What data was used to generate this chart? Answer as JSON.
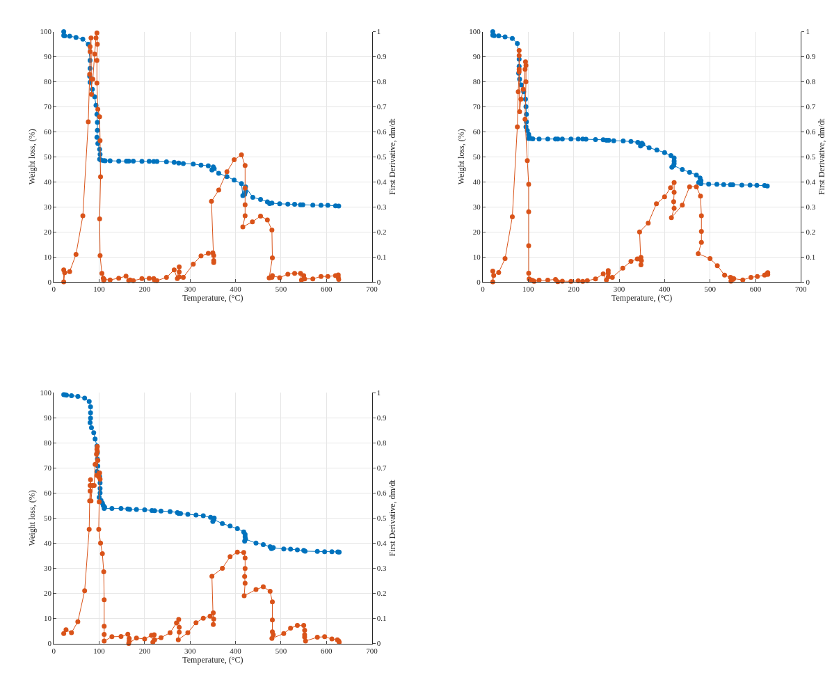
{
  "chart_data": [
    {
      "type": "line",
      "xlabel": "Temperature, (°C)",
      "ylabel": "Weight loss, (%)",
      "y2label": "First Derivative, dm/dt",
      "xlim": [
        0,
        700
      ],
      "xticks": [
        0,
        100,
        200,
        300,
        400,
        500,
        600,
        700
      ],
      "ylim": [
        0,
        100
      ],
      "yticks": [
        0,
        10,
        20,
        30,
        40,
        50,
        60,
        70,
        80,
        90,
        100
      ],
      "y2lim": [
        0,
        1
      ],
      "y2ticks": [
        0,
        0.1,
        0.2,
        0.3,
        0.4,
        0.5,
        0.6,
        0.7,
        0.8,
        0.9,
        1
      ],
      "grid": true,
      "marker": "circle",
      "series": [
        {
          "color": "#0072bd",
          "x": [
            22,
            22,
            24,
            35,
            49,
            64,
            76,
            80,
            80,
            79,
            80,
            85,
            90,
            93,
            95,
            96,
            96,
            95,
            97,
            101,
            102,
            101,
            104,
            110,
            113,
            124,
            143,
            160,
            165,
            175,
            194,
            210,
            220,
            227,
            248,
            265,
            275,
            285,
            307,
            324,
            340,
            348,
            351,
            353,
            363,
            381,
            397,
            413,
            416,
            420,
            422,
            422,
            438,
            455,
            470,
            475,
            480,
            497,
            515,
            530,
            543,
            548,
            570,
            588,
            603,
            620,
            627
          ],
          "values": [
            100,
            98.5,
            98.3,
            98.2,
            97.7,
            97,
            95,
            88.5,
            85.3,
            82.2,
            79.8,
            77,
            74,
            70.6,
            67,
            63.8,
            60.6,
            57.8,
            55.3,
            53,
            51,
            49,
            48.7,
            48.5,
            48.4,
            48.4,
            48.3,
            48.3,
            48.3,
            48.3,
            48.2,
            48.2,
            48.1,
            48.1,
            48,
            47.8,
            47.5,
            47.3,
            47.1,
            46.7,
            46.4,
            44.7,
            46,
            45.3,
            43.4,
            42.1,
            40.7,
            39.3,
            34.5,
            35,
            36,
            38,
            33.8,
            33,
            32,
            31.3,
            31.5,
            31.2,
            31.1,
            31,
            30.8,
            30.8,
            30.7,
            30.6,
            30.6,
            30.4,
            30.3
          ]
        },
        {
          "color": "#d95319",
          "axis": "y2",
          "x": [
            22,
            22,
            24,
            35,
            49,
            64,
            76,
            79,
            80,
            80,
            82,
            83,
            84,
            86,
            90,
            93,
            95,
            96,
            95,
            95,
            97,
            101,
            102,
            103,
            101,
            102,
            106,
            109,
            110,
            111,
            124,
            143,
            159,
            165,
            168,
            175,
            194,
            210,
            220,
            222,
            227,
            248,
            265,
            272,
            276,
            276,
            276,
            285,
            307,
            324,
            340,
            350,
            352,
            352,
            352,
            347,
            363,
            381,
            397,
            413,
            421,
            421,
            421,
            421,
            416,
            437,
            455,
            470,
            480,
            481,
            474,
            480,
            481,
            497,
            515,
            530,
            543,
            545,
            550,
            552,
            570,
            588,
            603,
            620,
            626,
            626,
            627
          ],
          "values": [
            0.048,
            0,
            0.037,
            0.041,
            0.11,
            0.264,
            0.64,
            0.83,
            0.92,
            0.94,
            0.975,
            0.75,
            0.81,
            0.81,
            0.91,
            0.975,
            0.995,
            0.95,
            0.885,
            0.795,
            0.69,
            0.66,
            0.565,
            0.42,
            0.252,
            0.105,
            0.034,
            0.015,
            0.005,
            0.01,
            0.008,
            0.015,
            0.023,
            0.005,
            0.008,
            0.005,
            0.013,
            0.014,
            0.013,
            0.006,
            0.005,
            0.018,
            0.048,
            0.013,
            0.06,
            0.04,
            0.02,
            0.018,
            0.071,
            0.104,
            0.114,
            0.116,
            0.105,
            0.085,
            0.077,
            0.322,
            0.367,
            0.44,
            0.488,
            0.508,
            0.465,
            0.375,
            0.308,
            0.264,
            0.22,
            0.24,
            0.263,
            0.248,
            0.207,
            0.096,
            0.016,
            0.018,
            0.025,
            0.017,
            0.031,
            0.034,
            0.034,
            0.007,
            0.025,
            0.012,
            0.012,
            0.022,
            0.022,
            0.025,
            0.028,
            0.018,
            0.01
          ]
        }
      ]
    },
    {
      "type": "line",
      "xlabel": "Temperature, (°C)",
      "ylabel": "Weight loss, (%)",
      "y2label": "First Derivative, dm/dt",
      "xlim": [
        0,
        700
      ],
      "xticks": [
        0,
        100,
        200,
        300,
        400,
        500,
        600,
        700
      ],
      "ylim": [
        0,
        100
      ],
      "yticks": [
        0,
        10,
        20,
        30,
        40,
        50,
        60,
        70,
        80,
        90,
        100
      ],
      "y2lim": [
        0,
        1
      ],
      "y2ticks": [
        0,
        0.1,
        0.2,
        0.3,
        0.4,
        0.5,
        0.6,
        0.7,
        0.8,
        0.9,
        1
      ],
      "grid": true,
      "marker": "circle",
      "series": [
        {
          "color": "#0072bd",
          "x": [
            22,
            22,
            25,
            35,
            49,
            65,
            76,
            80,
            80,
            79,
            81,
            85,
            90,
            94,
            95,
            96,
            96,
            95,
            98,
            101,
            102,
            101,
            105,
            110,
            124,
            143,
            160,
            165,
            175,
            194,
            210,
            220,
            227,
            248,
            265,
            272,
            277,
            288,
            309,
            326,
            341,
            347,
            350,
            352,
            366,
            383,
            400,
            414,
            421,
            421,
            421,
            416,
            420,
            439,
            455,
            470,
            478,
            480,
            475,
            480,
            497,
            515,
            530,
            545,
            550,
            570,
            588,
            603,
            620,
            626
          ],
          "values": [
            100,
            98.6,
            98.4,
            98.3,
            97.9,
            97.3,
            95.3,
            89,
            86.2,
            83.4,
            81,
            78.7,
            76,
            73,
            70,
            67,
            64,
            62,
            60.5,
            59,
            58,
            57.3,
            57.3,
            57.2,
            57.1,
            57.1,
            57.1,
            57.1,
            57.1,
            57.1,
            57.1,
            57.1,
            57,
            56.9,
            56.8,
            56.6,
            56.6,
            56.4,
            56.3,
            56.1,
            55.8,
            54.3,
            55.4,
            55,
            53.6,
            52.7,
            51.7,
            50.5,
            49.5,
            48.3,
            47.3,
            45.8,
            46.5,
            44.9,
            43.8,
            42.7,
            41.5,
            40.5,
            39.7,
            39.3,
            39.1,
            39,
            38.9,
            38.8,
            38.8,
            38.7,
            38.7,
            38.6,
            38.5,
            38.3
          ]
        },
        {
          "color": "#d95319",
          "axis": "y2",
          "x": [
            22,
            22,
            24,
            35,
            49,
            65,
            76,
            78,
            80,
            80,
            80,
            80,
            81,
            84,
            89,
            93,
            94,
            95,
            95,
            93,
            98,
            101,
            101,
            101,
            101,
            102,
            106,
            110,
            113,
            124,
            143,
            160,
            165,
            175,
            194,
            210,
            220,
            230,
            248,
            265,
            272,
            276,
            276,
            276,
            285,
            308,
            326,
            340,
            348,
            349,
            348,
            345,
            364,
            382,
            400,
            413,
            421,
            421,
            420,
            421,
            415,
            439,
            455,
            470,
            479,
            481,
            481,
            481,
            474,
            500,
            516,
            532,
            545,
            546,
            548,
            550,
            552,
            572,
            590,
            604,
            620,
            625,
            627,
            627
          ],
          "values": [
            0.043,
            0,
            0.026,
            0.038,
            0.093,
            0.26,
            0.62,
            0.76,
            0.84,
            0.85,
            0.905,
            0.925,
            0.68,
            0.73,
            0.77,
            0.85,
            0.88,
            0.865,
            0.8,
            0.65,
            0.485,
            0.39,
            0.28,
            0.145,
            0.035,
            0.012,
            0.008,
            0.006,
            0.002,
            0.007,
            0.007,
            0.01,
            0.001,
            0.003,
            0.002,
            0.004,
            0.002,
            0.005,
            0.012,
            0.032,
            0.008,
            0.045,
            0.035,
            0.02,
            0.018,
            0.055,
            0.082,
            0.092,
            0.098,
            0.085,
            0.068,
            0.2,
            0.235,
            0.312,
            0.34,
            0.376,
            0.397,
            0.358,
            0.321,
            0.294,
            0.257,
            0.307,
            0.38,
            0.38,
            0.343,
            0.264,
            0.202,
            0.158,
            0.113,
            0.093,
            0.065,
            0.027,
            0.018,
            0.003,
            0.015,
            0.01,
            0.013,
            0.008,
            0.018,
            0.022,
            0.027,
            0.032,
            0.037,
            0.03
          ]
        }
      ]
    },
    {
      "type": "line",
      "xlabel": "Temperature, (°C)",
      "ylabel": "Weight loss, (%)",
      "y2label": "First Derivative, dm/dt",
      "xlim": [
        0,
        700
      ],
      "xticks": [
        0,
        100,
        200,
        300,
        400,
        500,
        600,
        700
      ],
      "ylim": [
        0,
        100
      ],
      "yticks": [
        0,
        10,
        20,
        30,
        40,
        50,
        60,
        70,
        80,
        90,
        100
      ],
      "y2lim": [
        0,
        1
      ],
      "y2ticks": [
        0,
        0.1,
        0.2,
        0.3,
        0.4,
        0.5,
        0.6,
        0.7,
        0.8,
        0.9,
        1
      ],
      "grid": true,
      "marker": "circle",
      "series": [
        {
          "color": "#0072bd",
          "x": [
            22,
            25,
            28,
            39,
            53,
            68,
            78,
            81,
            81,
            81,
            80,
            83,
            88,
            91,
            95,
            96,
            96,
            97,
            95,
            101,
            102,
            102,
            102,
            100,
            104,
            107,
            109,
            112,
            111,
            128,
            148,
            163,
            167,
            182,
            200,
            216,
            222,
            236,
            256,
            272,
            275,
            279,
            295,
            313,
            329,
            345,
            350,
            353,
            352,
            371,
            388,
            404,
            418,
            421,
            421,
            420,
            422,
            445,
            461,
            476,
            481,
            479,
            483,
            506,
            521,
            536,
            550,
            553,
            580,
            596,
            612,
            625,
            628
          ],
          "values": [
            99.2,
            99.1,
            99,
            98.8,
            98.5,
            97.8,
            96.5,
            94.3,
            92,
            89.8,
            88,
            86,
            84,
            81.5,
            78.7,
            76,
            73.5,
            70.7,
            68.5,
            66.5,
            64,
            61.8,
            60,
            58.3,
            57,
            56,
            55,
            54.3,
            53.8,
            53.8,
            53.8,
            53.6,
            53.5,
            53.4,
            53.3,
            53,
            52.9,
            52.8,
            52.6,
            52.2,
            51.8,
            51.8,
            51.5,
            51.2,
            50.9,
            50.3,
            48.6,
            50,
            49.4,
            47.8,
            46.8,
            45.8,
            44.5,
            43.5,
            42.5,
            40.8,
            41.6,
            40,
            39.4,
            38.6,
            38,
            37.8,
            38.2,
            37.7,
            37.6,
            37.3,
            37.1,
            36.8,
            36.7,
            36.6,
            36.6,
            36.5,
            36.4
          ]
        },
        {
          "color": "#d95319",
          "axis": "y2",
          "x": [
            22,
            27,
            39,
            53,
            68,
            78,
            79,
            80,
            80,
            81,
            82,
            85,
            89,
            91,
            94,
            95,
            96,
            96,
            97,
            95,
            99,
            101,
            102,
            100,
            99,
            103,
            107,
            110,
            111,
            111,
            111,
            111,
            128,
            148,
            163,
            166,
            166,
            165,
            182,
            200,
            215,
            218,
            221,
            222,
            236,
            256,
            270,
            275,
            276,
            276,
            274,
            295,
            313,
            329,
            344,
            351,
            352,
            351,
            348,
            371,
            388,
            404,
            418,
            421,
            421,
            420,
            421,
            419,
            445,
            461,
            476,
            481,
            481,
            481,
            483,
            480,
            506,
            521,
            536,
            550,
            552,
            552,
            552,
            554,
            580,
            596,
            612,
            624,
            627,
            628
          ],
          "values": [
            0.04,
            0.055,
            0.043,
            0.087,
            0.21,
            0.455,
            0.568,
            0.608,
            0.63,
            0.653,
            0.568,
            0.63,
            0.63,
            0.714,
            0.755,
            0.775,
            0.785,
            0.766,
            0.73,
            0.67,
            0.665,
            0.68,
            0.655,
            0.565,
            0.455,
            0.4,
            0.358,
            0.286,
            0.174,
            0.069,
            0.036,
            0.01,
            0.027,
            0.028,
            0.037,
            0.02,
            0.01,
            0,
            0.022,
            0.018,
            0.033,
            0.005,
            0.035,
            0.015,
            0.023,
            0.043,
            0.082,
            0.096,
            0.065,
            0.045,
            0.015,
            0.043,
            0.083,
            0.101,
            0.109,
            0.122,
            0.097,
            0.076,
            0.268,
            0.3,
            0.346,
            0.364,
            0.363,
            0.341,
            0.299,
            0.267,
            0.24,
            0.19,
            0.215,
            0.226,
            0.208,
            0.166,
            0.094,
            0.047,
            0.035,
            0.02,
            0.04,
            0.061,
            0.072,
            0.072,
            0.053,
            0.035,
            0.026,
            0.01,
            0.025,
            0.027,
            0.018,
            0.015,
            0.01,
            0.005
          ]
        }
      ]
    }
  ]
}
